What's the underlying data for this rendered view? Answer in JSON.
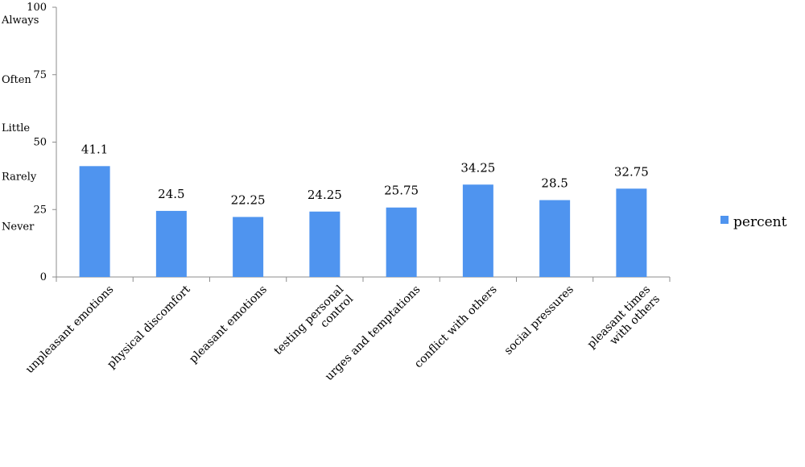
{
  "chart_data": {
    "type": "bar",
    "categories": [
      [
        "unpleasant emotions"
      ],
      [
        "physical discomfort"
      ],
      [
        "pleasant emotions"
      ],
      [
        "testing personal",
        "control"
      ],
      [
        "urges and temptations"
      ],
      [
        "conflict with others"
      ],
      [
        "social pressures"
      ],
      [
        "pleasant times",
        "with others"
      ]
    ],
    "series": [
      {
        "name": "percent",
        "values": [
          41.1,
          24.5,
          22.25,
          24.25,
          25.75,
          34.25,
          28.5,
          32.75
        ],
        "color": "#4f94ef"
      }
    ],
    "data_labels": [
      "41.1",
      "24.5",
      "22.25",
      "24.25",
      "25.75",
      "34.25",
      "28.5",
      "32.75"
    ],
    "ylim": [
      0,
      100
    ],
    "yticks": [
      0,
      25,
      50,
      75,
      100
    ],
    "frequency_labels": [
      {
        "text": "Always",
        "value": 95.5
      },
      {
        "text": "Often",
        "value": 73.5
      },
      {
        "text": "Little",
        "value": 55.5
      },
      {
        "text": "Rarely",
        "value": 37.5
      },
      {
        "text": "Never",
        "value": 19
      }
    ],
    "grid": false,
    "legend": {
      "position": "right",
      "entries": [
        "percent"
      ]
    }
  }
}
